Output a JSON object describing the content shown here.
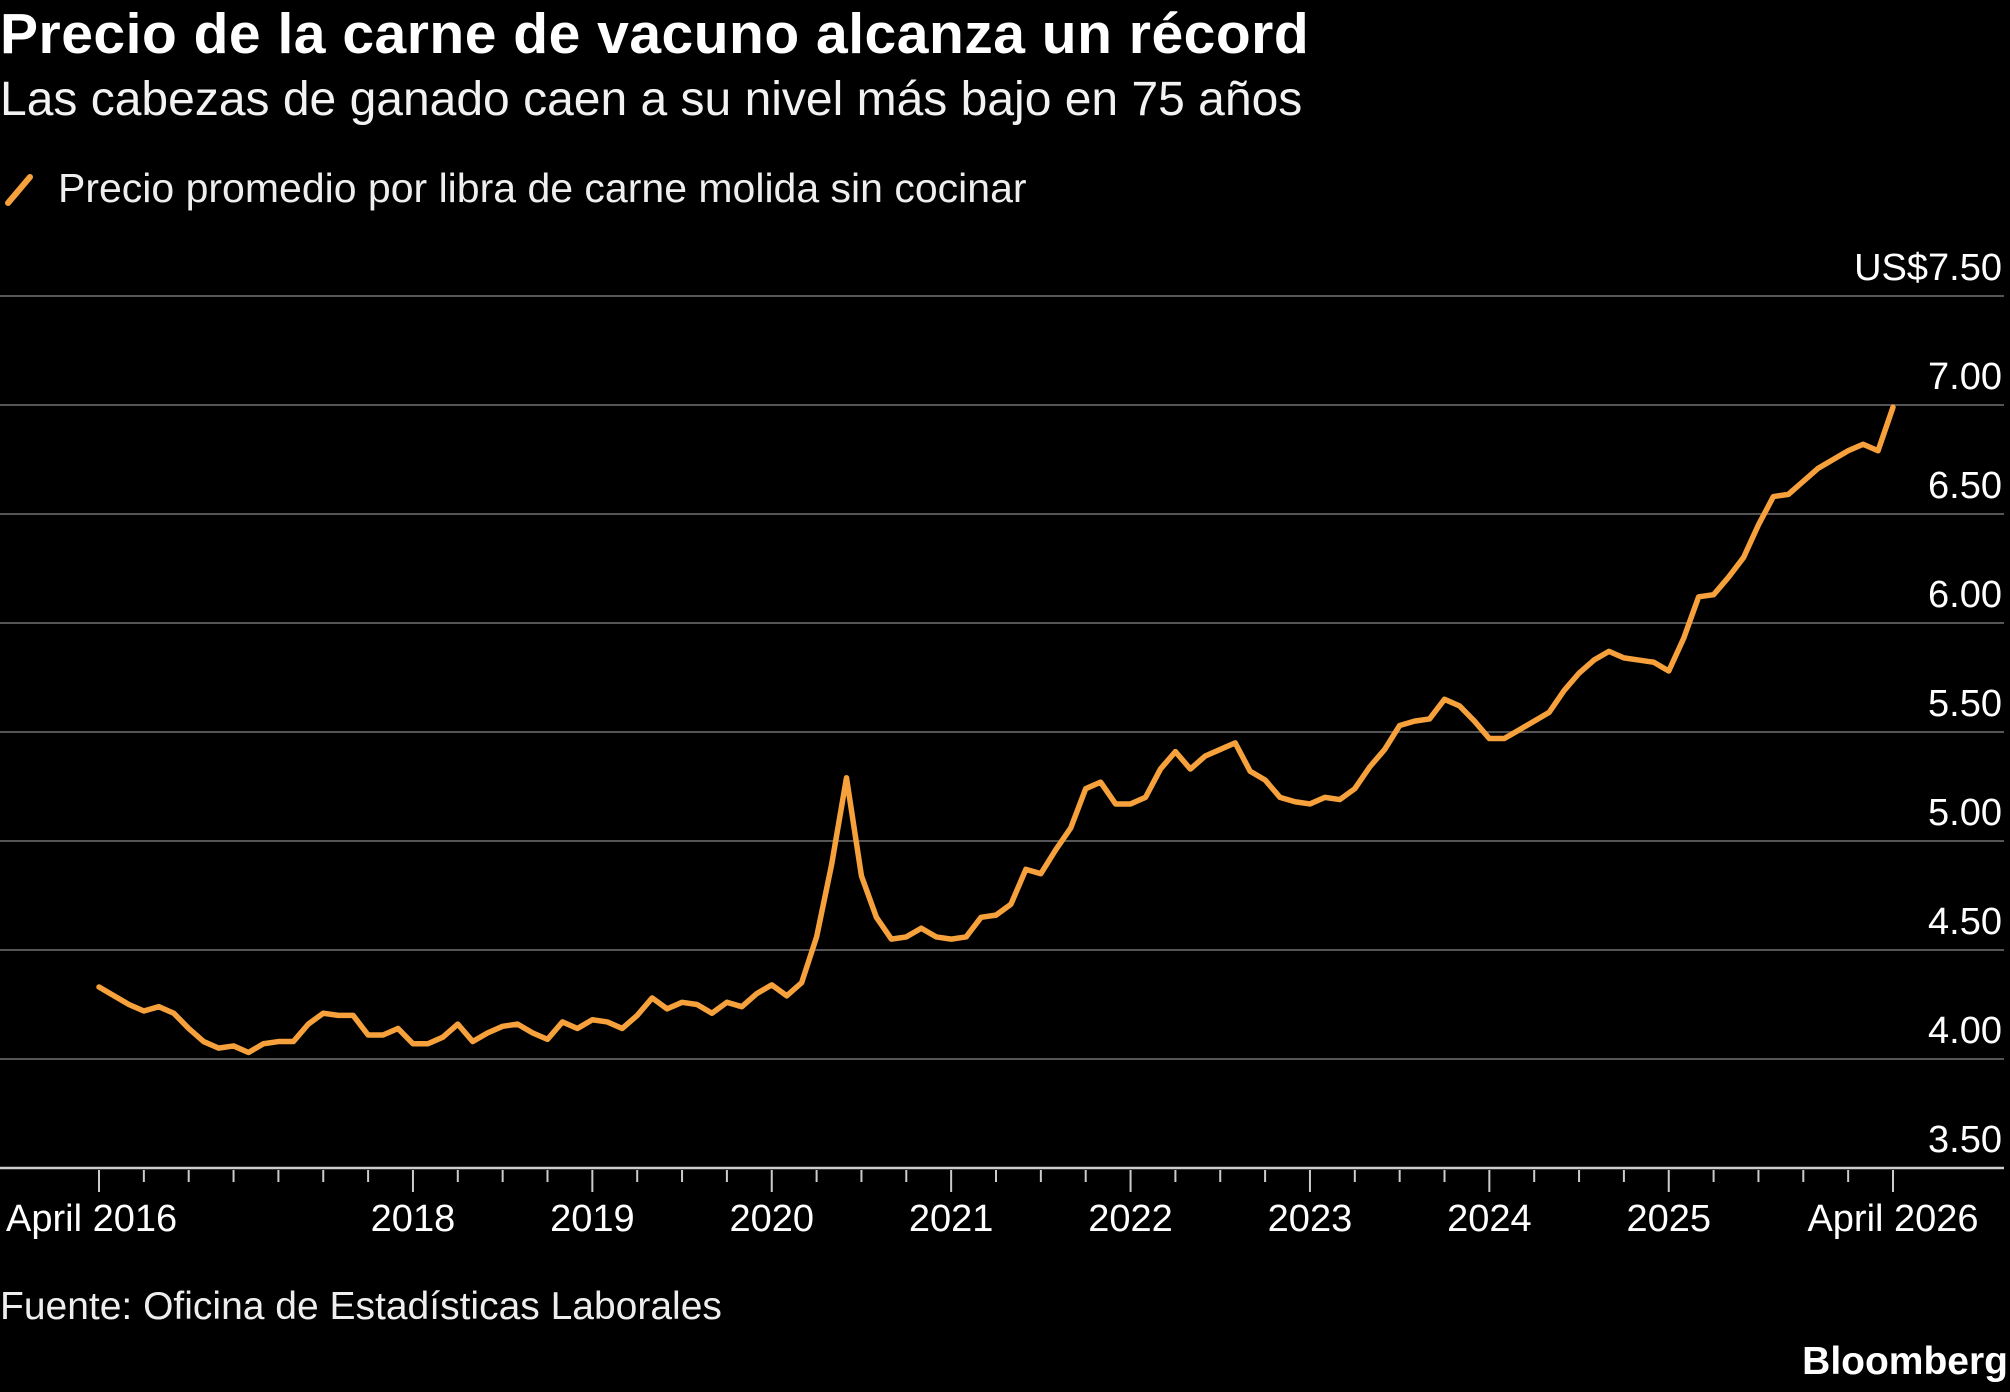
{
  "header": {
    "title": "Precio de la carne de vacuno alcanza un récord",
    "subtitle": "Las cabezas de ganado caen a su nivel más bajo en 75 años"
  },
  "legend": {
    "label": "Precio promedio por libra de carne molida sin cocinar",
    "color": "#f6a13c",
    "icon": "diagonal-line-icon"
  },
  "footer": {
    "source": "Fuente: Oficina de Estadísticas Laborales",
    "brand": "Bloomberg"
  },
  "colors": {
    "background": "#000000",
    "line": "#f6a13c",
    "grid": "#555555",
    "axis": "#cccccc"
  },
  "chart_data": {
    "type": "line",
    "title": "Precio de la carne de vacuno alcanza un récord",
    "subtitle": "Las cabezas de ganado caen a su nivel más bajo en 75 años",
    "ylabel": "",
    "xlabel": "",
    "x_unit": "month",
    "y_unit": "US$ per pound",
    "ylim": [
      3.5,
      7.5
    ],
    "xlim": [
      "2016-04",
      "2026-04"
    ],
    "grid": true,
    "legend_position": "top-left",
    "y_ticks": [
      {
        "value": 3.5,
        "label": "3.50"
      },
      {
        "value": 4.0,
        "label": "4.00"
      },
      {
        "value": 4.5,
        "label": "4.50"
      },
      {
        "value": 5.0,
        "label": "5.00"
      },
      {
        "value": 5.5,
        "label": "5.50"
      },
      {
        "value": 6.0,
        "label": "6.00"
      },
      {
        "value": 6.5,
        "label": "6.50"
      },
      {
        "value": 7.0,
        "label": "7.00"
      },
      {
        "value": 7.5,
        "label": "US$7.50"
      }
    ],
    "x_ticks": [
      {
        "date": "2016-04",
        "label": "April 2016"
      },
      {
        "date": "2018-01",
        "label": "2018"
      },
      {
        "date": "2019-01",
        "label": "2019"
      },
      {
        "date": "2020-01",
        "label": "2020"
      },
      {
        "date": "2021-01",
        "label": "2021"
      },
      {
        "date": "2022-01",
        "label": "2022"
      },
      {
        "date": "2023-01",
        "label": "2023"
      },
      {
        "date": "2024-01",
        "label": "2024"
      },
      {
        "date": "2025-01",
        "label": "2025"
      },
      {
        "date": "2026-04",
        "label": "April 2026"
      }
    ],
    "series": [
      {
        "name": "Precio promedio por libra de carne molida sin cocinar",
        "color": "#f6a13c",
        "points": [
          [
            "2016-04",
            4.33
          ],
          [
            "2016-05",
            4.29
          ],
          [
            "2016-06",
            4.25
          ],
          [
            "2016-07",
            4.22
          ],
          [
            "2016-08",
            4.24
          ],
          [
            "2016-09",
            4.21
          ],
          [
            "2016-10",
            4.14
          ],
          [
            "2016-11",
            4.08
          ],
          [
            "2016-12",
            4.05
          ],
          [
            "2017-01",
            4.06
          ],
          [
            "2017-02",
            4.03
          ],
          [
            "2017-03",
            4.07
          ],
          [
            "2017-04",
            4.08
          ],
          [
            "2017-05",
            4.08
          ],
          [
            "2017-06",
            4.16
          ],
          [
            "2017-07",
            4.21
          ],
          [
            "2017-08",
            4.2
          ],
          [
            "2017-09",
            4.2
          ],
          [
            "2017-10",
            4.11
          ],
          [
            "2017-11",
            4.11
          ],
          [
            "2017-12",
            4.14
          ],
          [
            "2018-01",
            4.07
          ],
          [
            "2018-02",
            4.07
          ],
          [
            "2018-03",
            4.1
          ],
          [
            "2018-04",
            4.16
          ],
          [
            "2018-05",
            4.08
          ],
          [
            "2018-06",
            4.12
          ],
          [
            "2018-07",
            4.15
          ],
          [
            "2018-08",
            4.16
          ],
          [
            "2018-09",
            4.12
          ],
          [
            "2018-10",
            4.09
          ],
          [
            "2018-11",
            4.17
          ],
          [
            "2018-12",
            4.14
          ],
          [
            "2019-01",
            4.18
          ],
          [
            "2019-02",
            4.17
          ],
          [
            "2019-03",
            4.14
          ],
          [
            "2019-04",
            4.2
          ],
          [
            "2019-05",
            4.28
          ],
          [
            "2019-06",
            4.23
          ],
          [
            "2019-07",
            4.26
          ],
          [
            "2019-08",
            4.25
          ],
          [
            "2019-09",
            4.21
          ],
          [
            "2019-10",
            4.26
          ],
          [
            "2019-11",
            4.24
          ],
          [
            "2019-12",
            4.3
          ],
          [
            "2020-01",
            4.34
          ],
          [
            "2020-02",
            4.29
          ],
          [
            "2020-03",
            4.35
          ],
          [
            "2020-04",
            4.56
          ],
          [
            "2020-05",
            4.89
          ],
          [
            "2020-06",
            5.29
          ],
          [
            "2020-07",
            4.84
          ],
          [
            "2020-08",
            4.65
          ],
          [
            "2020-09",
            4.55
          ],
          [
            "2020-10",
            4.56
          ],
          [
            "2020-11",
            4.6
          ],
          [
            "2020-12",
            4.56
          ],
          [
            "2021-01",
            4.55
          ],
          [
            "2021-02",
            4.56
          ],
          [
            "2021-03",
            4.65
          ],
          [
            "2021-04",
            4.66
          ],
          [
            "2021-05",
            4.71
          ],
          [
            "2021-06",
            4.87
          ],
          [
            "2021-07",
            4.85
          ],
          [
            "2021-08",
            4.96
          ],
          [
            "2021-09",
            5.06
          ],
          [
            "2021-10",
            5.24
          ],
          [
            "2021-11",
            5.27
          ],
          [
            "2021-12",
            5.17
          ],
          [
            "2022-01",
            5.17
          ],
          [
            "2022-02",
            5.2
          ],
          [
            "2022-03",
            5.33
          ],
          [
            "2022-04",
            5.41
          ],
          [
            "2022-05",
            5.33
          ],
          [
            "2022-06",
            5.39
          ],
          [
            "2022-07",
            5.42
          ],
          [
            "2022-08",
            5.45
          ],
          [
            "2022-09",
            5.32
          ],
          [
            "2022-10",
            5.28
          ],
          [
            "2022-11",
            5.2
          ],
          [
            "2022-12",
            5.18
          ],
          [
            "2023-01",
            5.17
          ],
          [
            "2023-02",
            5.2
          ],
          [
            "2023-03",
            5.19
          ],
          [
            "2023-04",
            5.24
          ],
          [
            "2023-05",
            5.34
          ],
          [
            "2023-06",
            5.42
          ],
          [
            "2023-07",
            5.53
          ],
          [
            "2023-08",
            5.55
          ],
          [
            "2023-09",
            5.56
          ],
          [
            "2023-10",
            5.65
          ],
          [
            "2023-11",
            5.62
          ],
          [
            "2023-12",
            5.55
          ],
          [
            "2024-01",
            5.47
          ],
          [
            "2024-02",
            5.47
          ],
          [
            "2024-03",
            5.51
          ],
          [
            "2024-04",
            5.55
          ],
          [
            "2024-05",
            5.59
          ],
          [
            "2024-06",
            5.69
          ],
          [
            "2024-07",
            5.77
          ],
          [
            "2024-08",
            5.83
          ],
          [
            "2024-09",
            5.87
          ],
          [
            "2024-10",
            5.84
          ],
          [
            "2024-11",
            5.83
          ],
          [
            "2024-12",
            5.82
          ],
          [
            "2025-01",
            5.78
          ],
          [
            "2025-02",
            5.93
          ],
          [
            "2025-03",
            6.12
          ],
          [
            "2025-04",
            6.13
          ],
          [
            "2025-05",
            6.21
          ],
          [
            "2025-06",
            6.3
          ],
          [
            "2025-07",
            6.45
          ],
          [
            "2025-08",
            6.58
          ],
          [
            "2025-09",
            6.59
          ],
          [
            "2025-10",
            6.65
          ],
          [
            "2025-11",
            6.71
          ],
          [
            "2025-12",
            6.75
          ],
          [
            "2026-01",
            6.79
          ],
          [
            "2026-02",
            6.82
          ],
          [
            "2026-03",
            6.79
          ],
          [
            "2026-04",
            6.99
          ]
        ]
      }
    ]
  }
}
